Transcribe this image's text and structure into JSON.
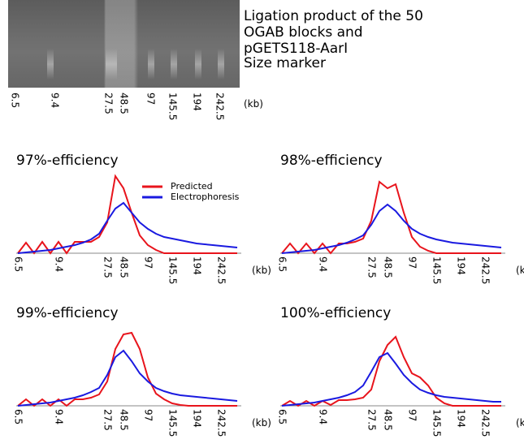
{
  "gel": {
    "caption": "Ligation product of the 50 OGAB blocks and pGETS118-AarI",
    "marker_label": "Size marker",
    "ticks": [
      "6.5",
      "9.4",
      "27.5",
      "48.5",
      "97",
      "145.5",
      "194",
      "242.5"
    ],
    "unit": "(kb)"
  },
  "chart_data": [
    {
      "type": "line",
      "title": "97%-efficiency",
      "x_label": "(kb)",
      "legend": "top",
      "ylim": [
        0,
        100
      ],
      "categories": [
        "6.5",
        null,
        null,
        null,
        null,
        "9.4",
        null,
        null,
        null,
        null,
        null,
        "27.5",
        null,
        "48.5",
        null,
        null,
        "97",
        null,
        null,
        "145.5",
        null,
        null,
        "194",
        null,
        null,
        "242.5",
        null,
        null
      ],
      "series": [
        {
          "name": "Predicted",
          "color": "#e8141c",
          "values": [
            0,
            13,
            0,
            14,
            0,
            14,
            0,
            14,
            14,
            14,
            20,
            38,
            95,
            80,
            50,
            22,
            10,
            4,
            0,
            0,
            0,
            0,
            0,
            0,
            0,
            0,
            0,
            0
          ]
        },
        {
          "name": "Electrophoresis",
          "color": "#1a1ae0",
          "values": [
            0,
            1,
            2,
            3,
            4,
            6,
            8,
            10,
            13,
            17,
            24,
            40,
            55,
            62,
            50,
            38,
            30,
            24,
            20,
            18,
            16,
            14,
            12,
            11,
            10,
            9,
            8,
            7
          ]
        }
      ]
    },
    {
      "type": "line",
      "title": "98%-efficiency",
      "x_label": "(kb)",
      "ylim": [
        0,
        100
      ],
      "categories": [
        "6.5",
        null,
        null,
        null,
        null,
        "9.4",
        null,
        null,
        null,
        null,
        null,
        "27.5",
        null,
        "48.5",
        null,
        null,
        "97",
        null,
        null,
        "145.5",
        null,
        null,
        "194",
        null,
        null,
        "242.5",
        null,
        null
      ],
      "series": [
        {
          "name": "Predicted",
          "color": "#e8141c",
          "values": [
            0,
            12,
            0,
            12,
            0,
            12,
            0,
            12,
            12,
            14,
            18,
            40,
            88,
            80,
            85,
            50,
            20,
            8,
            3,
            0,
            0,
            0,
            0,
            0,
            0,
            0,
            0,
            0
          ]
        },
        {
          "name": "Electrophoresis",
          "color": "#1a1ae0",
          "values": [
            0,
            1,
            2,
            3,
            4,
            6,
            8,
            10,
            13,
            17,
            22,
            35,
            52,
            60,
            52,
            40,
            30,
            24,
            20,
            17,
            15,
            13,
            12,
            11,
            10,
            9,
            8,
            7
          ]
        }
      ]
    },
    {
      "type": "line",
      "title": "99%-efficiency",
      "x_label": "(kb)",
      "ylim": [
        0,
        100
      ],
      "categories": [
        "6.5",
        null,
        null,
        null,
        null,
        "9.4",
        null,
        null,
        null,
        null,
        null,
        "27.5",
        null,
        "48.5",
        null,
        null,
        "97",
        null,
        null,
        "145.5",
        null,
        null,
        "194",
        null,
        null,
        "242.5",
        null,
        null
      ],
      "series": [
        {
          "name": "Predicted",
          "color": "#e8141c",
          "values": [
            0,
            8,
            0,
            8,
            0,
            8,
            0,
            8,
            8,
            10,
            14,
            30,
            70,
            88,
            90,
            70,
            35,
            15,
            8,
            3,
            1,
            0,
            0,
            0,
            0,
            0,
            0,
            0
          ]
        },
        {
          "name": "Electrophoresis",
          "color": "#1a1ae0",
          "values": [
            0,
            1,
            2,
            3,
            4,
            6,
            8,
            10,
            13,
            17,
            22,
            38,
            60,
            68,
            55,
            40,
            30,
            22,
            18,
            15,
            13,
            12,
            11,
            10,
            9,
            8,
            7,
            6
          ]
        }
      ]
    },
    {
      "type": "line",
      "title": "100%-efficiency",
      "x_label": "(kb)",
      "ylim": [
        0,
        100
      ],
      "categories": [
        "6.5",
        null,
        null,
        null,
        null,
        "9.4",
        null,
        null,
        null,
        null,
        null,
        "27.5",
        null,
        "48.5",
        null,
        null,
        "97",
        null,
        null,
        "145.5",
        null,
        null,
        "194",
        null,
        null,
        "242.5",
        null,
        null
      ],
      "series": [
        {
          "name": "Predicted",
          "color": "#e8141c",
          "values": [
            0,
            6,
            0,
            6,
            0,
            6,
            1,
            7,
            7,
            8,
            10,
            20,
            55,
            75,
            85,
            60,
            40,
            35,
            25,
            10,
            3,
            0,
            0,
            0,
            0,
            0,
            0,
            0
          ]
        },
        {
          "name": "Electrophoresis",
          "color": "#1a1ae0",
          "values": [
            0,
            1,
            2,
            3,
            4,
            6,
            8,
            10,
            13,
            17,
            25,
            42,
            60,
            65,
            52,
            38,
            28,
            20,
            16,
            13,
            11,
            10,
            9,
            8,
            7,
            6,
            5,
            5
          ]
        }
      ]
    }
  ]
}
